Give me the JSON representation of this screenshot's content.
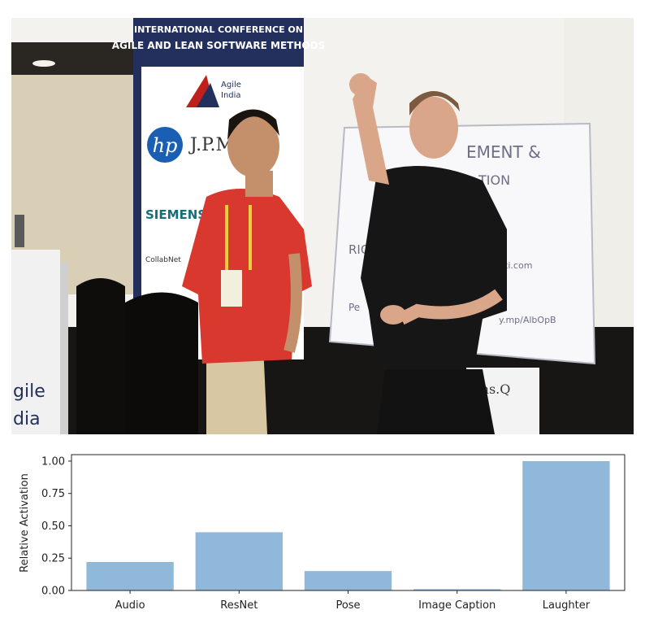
{
  "photo": {
    "banner_line1": "INTERNATIONAL CONFERENCE ON",
    "banner_line2": "AGILE AND LEAN SOFTWARE METHODS",
    "agile_logo_word1": "Agile",
    "agile_logo_word2": "India",
    "sponsor_hp": "hp",
    "sponsor_jpm": "J.P.M",
    "sponsor_siemens": "SIEMENS",
    "sponsor_collabnet": "CollabNet",
    "podium_line1": "gile",
    "podium_line2": "dia",
    "whiteboard_line1": "EMENT &",
    "whiteboard_line2": "TION",
    "whiteboard_line3": "RICH",
    "whiteboard_line4": "ki.com",
    "whiteboard_line5": "Pe",
    "whiteboard_line6": "y.mp/AlbOpB",
    "floor_banner_text": "ons.Q"
  },
  "chart_data": {
    "type": "bar",
    "categories": [
      "Audio",
      "ResNet",
      "Pose",
      "Image Caption",
      "Laughter"
    ],
    "values": [
      0.22,
      0.45,
      0.15,
      0.01,
      1.0
    ],
    "ylabel": "Relative Activation",
    "xlabel": "",
    "ylim": [
      0,
      1.05
    ],
    "yticks": [
      "0.00",
      "0.25",
      "0.50",
      "0.75",
      "1.00"
    ],
    "grid": false,
    "bar_color": "#8fb8da"
  }
}
